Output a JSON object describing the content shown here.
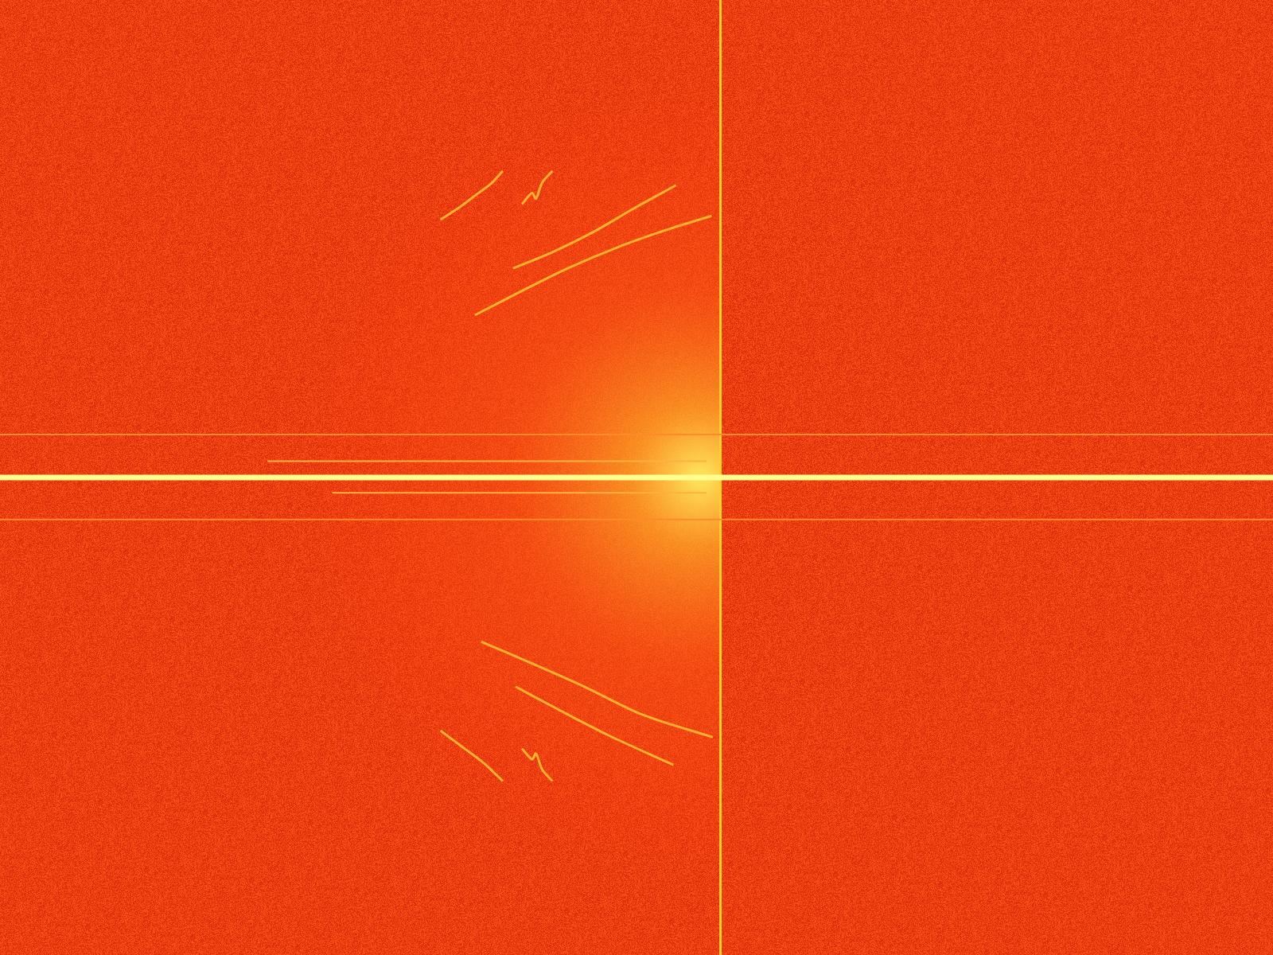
{
  "chart_data": {
    "type": "line",
    "tick_labels": false,
    "grid": false,
    "xlim": [
      0,
      100
    ],
    "ylim": [
      -50,
      50
    ],
    "series": [
      {
        "color": "#ffff90",
        "line_style": "solid",
        "x": [
          0,
          100
        ],
        "values": [
          0,
          0
        ]
      },
      {
        "color": "#ff8a2a",
        "line_style": "solid",
        "x": [
          0,
          100
        ],
        "values": [
          4.5,
          4.5
        ]
      },
      {
        "color": "#ff8a2a",
        "line_style": "solid",
        "x": [
          0,
          100
        ],
        "values": [
          -4.4,
          -4.4
        ]
      },
      {
        "color": "#ffb040",
        "line_style": "solid",
        "x": [
          21.0,
          55.5
        ],
        "values": [
          1.7,
          1.7
        ]
      },
      {
        "color": "#ffb040",
        "line_style": "solid",
        "x": [
          26.1,
          55.5
        ],
        "values": [
          -1.6,
          -1.6
        ]
      },
      {
        "color": "#ffd030",
        "line_style": "solid",
        "x": [
          56.6,
          56.6
        ],
        "values": [
          -50,
          50
        ]
      },
      {
        "color": "#ffb030",
        "line_style": "solid",
        "x": [
          34.6,
          36.0,
          37.6,
          38.6,
          39.5
        ],
        "values": [
          27.0,
          28.2,
          29.8,
          30.8,
          32.1
        ]
      },
      {
        "color": "#ffb030",
        "line_style": "solid",
        "x": [
          41.0,
          41.8,
          42.1,
          42.6,
          43.4
        ],
        "values": [
          28.6,
          29.8,
          29.2,
          30.9,
          32.1
        ]
      },
      {
        "color": "#ffb030",
        "line_style": "solid",
        "x": [
          40.3,
          43.4,
          46.6,
          49.7,
          53.1
        ],
        "values": [
          21.9,
          23.6,
          25.7,
          28.1,
          30.6
        ]
      },
      {
        "color": "#ffb030",
        "line_style": "solid",
        "x": [
          37.3,
          40.8,
          44.6,
          48.5,
          52.3,
          55.9
        ],
        "values": [
          17.0,
          19.4,
          21.9,
          24.1,
          25.9,
          27.4
        ]
      },
      {
        "color": "#ffb030",
        "line_style": "solid",
        "x": [
          34.6,
          36.3,
          38.0,
          39.5
        ],
        "values": [
          -26.5,
          -28.2,
          -29.9,
          -31.8
        ]
      },
      {
        "color": "#ffb030",
        "line_style": "solid",
        "x": [
          41.0,
          41.8,
          42.1,
          42.6,
          43.4
        ],
        "values": [
          -28.4,
          -29.5,
          -28.9,
          -30.6,
          -31.8
        ]
      },
      {
        "color": "#ffb030",
        "line_style": "solid",
        "x": [
          37.8,
          41.5,
          45.9,
          50.4,
          56.0
        ],
        "values": [
          -17.2,
          -19.3,
          -21.9,
          -24.8,
          -27.2
        ]
      },
      {
        "color": "#ffb030",
        "line_style": "solid",
        "x": [
          40.5,
          44.0,
          47.8,
          52.9
        ],
        "values": [
          -21.9,
          -24.4,
          -27.0,
          -30.1
        ]
      }
    ]
  }
}
